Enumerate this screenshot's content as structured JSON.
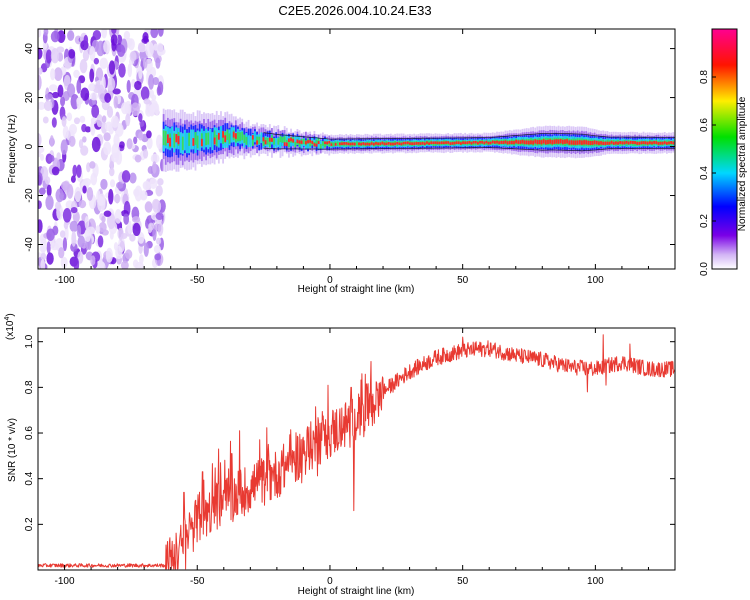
{
  "title": "C2E5.2026.004.10.24.E33",
  "chart_data": [
    {
      "type": "heatmap",
      "name": "spectrogram",
      "xlabel": "Height of straight line (km)",
      "ylabel": "Frequency (Hz)",
      "xlim": [
        -110,
        130
      ],
      "ylim": [
        -50,
        48
      ],
      "xticks": [
        -100,
        -50,
        0,
        50,
        100
      ],
      "yticks": [
        -40,
        -20,
        0,
        20,
        40
      ],
      "noise_region": [
        -110,
        -63
      ],
      "band_center_points": [
        [
          -63,
          3
        ],
        [
          -55,
          2
        ],
        [
          -40,
          4
        ],
        [
          -30,
          3
        ],
        [
          -20,
          2
        ],
        [
          -10,
          1.5
        ],
        [
          0,
          1
        ],
        [
          20,
          1.2
        ],
        [
          50,
          1.5
        ],
        [
          85,
          2
        ],
        [
          100,
          1.5
        ],
        [
          130,
          1.5
        ]
      ],
      "band_halfwidth_points": [
        [
          -63,
          4
        ],
        [
          -40,
          3
        ],
        [
          -30,
          2
        ],
        [
          -15,
          1.6
        ],
        [
          0,
          1.2
        ],
        [
          60,
          1.2
        ],
        [
          80,
          2
        ],
        [
          95,
          2
        ],
        [
          105,
          1.4
        ],
        [
          130,
          1.3
        ]
      ],
      "colorbar": {
        "label": "Normalized spectral amplitude",
        "ticks": [
          0.0,
          0.2,
          0.4,
          0.6,
          0.8
        ],
        "tick_labels": [
          "0.0",
          "0.2",
          "0.4",
          "0.6",
          "0.8"
        ],
        "range": [
          0,
          1
        ]
      }
    },
    {
      "type": "line",
      "name": "snr",
      "xlabel": "Height of straight line (km)",
      "ylabel": "SNR (10 * v/v)",
      "y_scale_label": "(x10",
      "y_scale_exponent": "4",
      "y_scale_suffix": ")",
      "xlim": [
        -110,
        130
      ],
      "ylim": [
        0,
        1.06
      ],
      "xticks": [
        -100,
        -50,
        0,
        50,
        100
      ],
      "yticks": [
        0.2,
        0.4,
        0.6,
        0.8,
        1.0
      ],
      "ytick_labels": [
        "0.2",
        "0.4",
        "0.6",
        "0.8",
        "1.0"
      ],
      "series_color": "#e83a32",
      "trend_points": [
        [
          -110,
          0.02
        ],
        [
          -62,
          0.02
        ],
        [
          -58,
          0.06
        ],
        [
          -50,
          0.22
        ],
        [
          -40,
          0.3
        ],
        [
          -30,
          0.36
        ],
        [
          -20,
          0.42
        ],
        [
          -10,
          0.52
        ],
        [
          0,
          0.6
        ],
        [
          10,
          0.66
        ],
        [
          20,
          0.78
        ],
        [
          30,
          0.87
        ],
        [
          40,
          0.93
        ],
        [
          50,
          0.96
        ],
        [
          60,
          0.97
        ],
        [
          70,
          0.94
        ],
        [
          80,
          0.92
        ],
        [
          90,
          0.89
        ],
        [
          100,
          0.88
        ],
        [
          110,
          0.91
        ],
        [
          120,
          0.88
        ],
        [
          130,
          0.88
        ]
      ],
      "spike_points": [
        [
          -55,
          0.34
        ],
        [
          -48,
          0.43
        ],
        [
          -42,
          0.53
        ],
        [
          -37,
          0.51
        ],
        [
          -34,
          0.61
        ],
        [
          -25,
          0.48
        ],
        [
          -15,
          0.46
        ],
        [
          -5,
          0.63
        ],
        [
          0,
          0.55
        ],
        [
          5,
          0.6
        ],
        [
          8,
          0.8
        ],
        [
          9,
          0.26
        ],
        [
          12,
          0.86
        ],
        [
          17,
          0.72
        ],
        [
          50,
          1.02
        ],
        [
          55,
          1.0
        ],
        [
          97,
          0.78
        ],
        [
          103,
          1.03
        ],
        [
          104,
          0.81
        ],
        [
          113,
          0.99
        ]
      ],
      "noise_amplitude": 0.04
    }
  ]
}
